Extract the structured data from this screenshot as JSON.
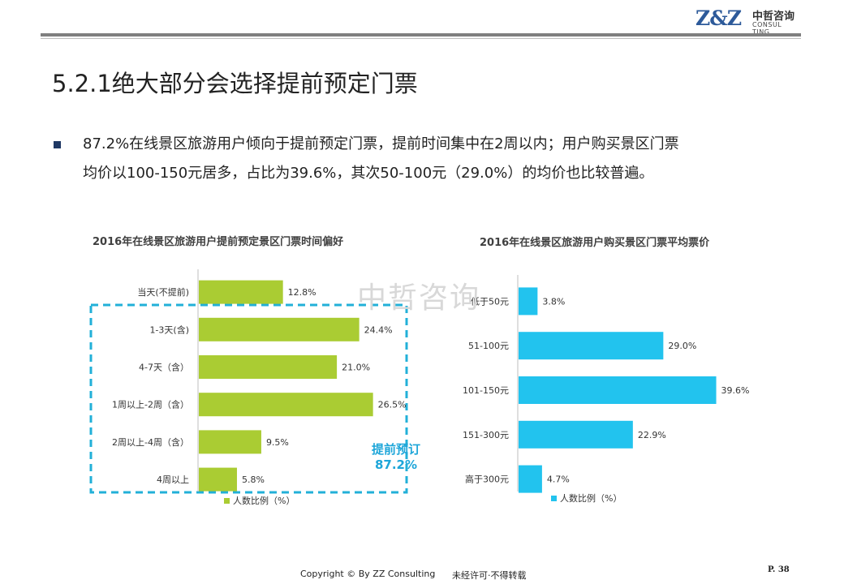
{
  "header": {
    "logo_mark": "Z&Z",
    "logo_cn": "中哲咨询",
    "logo_en": "CONSUL TING"
  },
  "slide": {
    "title": "5.2.1绝大部分会选择提前预定门票",
    "body_lines": [
      "87.2%在线景区旅游用户倾向于提前预定门票，提前时间集中在2周以内；用户购买景区门票",
      "均价以100-150元居多，占比为39.6%，其次50-100元（29.0%）的均价也比较普遍。"
    ]
  },
  "watermark": "中哲咨询",
  "callout": {
    "line1": "提前预订",
    "line2": "87.2%"
  },
  "chart_data": [
    {
      "type": "bar",
      "orientation": "horizontal",
      "title": "2016年在线景区旅游用户提前预定景区门票时间偏好",
      "categories": [
        "当天(不提前)",
        "1-3天(含)",
        "4-7天（含）",
        "1周以上-2周（含）",
        "2周以上-4周（含）",
        "4周以上"
      ],
      "series": [
        {
          "name": "人数比例（%）",
          "values": [
            12.8,
            24.4,
            21.0,
            26.5,
            9.5,
            5.8
          ]
        }
      ],
      "data_labels": [
        "12.8%",
        "24.4%",
        "21.0%",
        "26.5%",
        "9.5%",
        "5.8%"
      ],
      "legend": "bottom",
      "color": "#aacc33"
    },
    {
      "type": "bar",
      "orientation": "horizontal",
      "title": "2016年在线景区旅游用户购买景区门票平均票价",
      "categories": [
        "低于50元",
        "51-100元",
        "101-150元",
        "151-300元",
        "高于300元"
      ],
      "series": [
        {
          "name": "人数比例（%）",
          "values": [
            3.8,
            29.0,
            39.6,
            22.9,
            4.7
          ]
        }
      ],
      "data_labels": [
        "3.8%",
        "29.0%",
        "39.6%",
        "22.9%",
        "4.7%"
      ],
      "legend": "bottom",
      "color": "#22c3ee"
    }
  ],
  "footer": {
    "copyright": "Copyright © By  ZZ Consulting",
    "note": "未经许可·不得转载",
    "page": "P. 38"
  }
}
